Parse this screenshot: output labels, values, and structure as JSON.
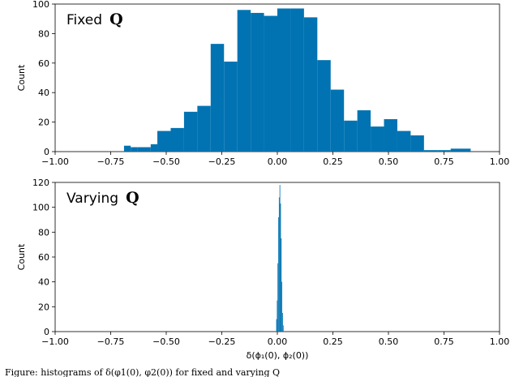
{
  "caption_fragment": "Figure: histograms of δ(φ1(0), φ2(0)) for fixed and varying Q",
  "chart_data": [
    {
      "type": "bar",
      "title_prefix": "Fixed",
      "title_symbol": "Q",
      "xlabel": "",
      "ylabel": "Count",
      "xlim": [
        -1.0,
        1.0
      ],
      "ylim": [
        0,
        100
      ],
      "xticks": [
        "−1.00",
        "−0.75",
        "−0.50",
        "−0.25",
        "0.00",
        "0.25",
        "0.50",
        "0.75",
        "1.00"
      ],
      "yticks": [
        "0",
        "20",
        "40",
        "60",
        "80",
        "100"
      ],
      "color": "#0173b2",
      "bins": [
        {
          "x0": -0.69,
          "x1": -0.66,
          "count": 4
        },
        {
          "x0": -0.66,
          "x1": -0.63,
          "count": 3
        },
        {
          "x0": -0.63,
          "x1": -0.57,
          "count": 3
        },
        {
          "x0": -0.57,
          "x1": -0.54,
          "count": 5
        },
        {
          "x0": -0.54,
          "x1": -0.48,
          "count": 14
        },
        {
          "x0": -0.48,
          "x1": -0.42,
          "count": 16
        },
        {
          "x0": -0.42,
          "x1": -0.36,
          "count": 27
        },
        {
          "x0": -0.36,
          "x1": -0.3,
          "count": 31
        },
        {
          "x0": -0.3,
          "x1": -0.24,
          "count": 73
        },
        {
          "x0": -0.24,
          "x1": -0.18,
          "count": 61
        },
        {
          "x0": -0.18,
          "x1": -0.12,
          "count": 96
        },
        {
          "x0": -0.12,
          "x1": -0.06,
          "count": 94
        },
        {
          "x0": -0.06,
          "x1": 0.0,
          "count": 92
        },
        {
          "x0": 0.0,
          "x1": 0.06,
          "count": 97
        },
        {
          "x0": 0.06,
          "x1": 0.12,
          "count": 97
        },
        {
          "x0": 0.12,
          "x1": 0.18,
          "count": 91
        },
        {
          "x0": 0.18,
          "x1": 0.24,
          "count": 62
        },
        {
          "x0": 0.24,
          "x1": 0.3,
          "count": 42
        },
        {
          "x0": 0.3,
          "x1": 0.36,
          "count": 21
        },
        {
          "x0": 0.36,
          "x1": 0.42,
          "count": 28
        },
        {
          "x0": 0.42,
          "x1": 0.48,
          "count": 17
        },
        {
          "x0": 0.48,
          "x1": 0.54,
          "count": 22
        },
        {
          "x0": 0.54,
          "x1": 0.6,
          "count": 14
        },
        {
          "x0": 0.6,
          "x1": 0.66,
          "count": 11
        },
        {
          "x0": 0.66,
          "x1": 0.72,
          "count": 1
        },
        {
          "x0": 0.72,
          "x1": 0.78,
          "count": 1
        },
        {
          "x0": 0.78,
          "x1": 0.87,
          "count": 2
        }
      ]
    },
    {
      "type": "bar",
      "title_prefix": "Varying",
      "title_symbol": "Q",
      "xlabel": "δ(ϕ₁(0), ϕ₂(0))",
      "ylabel": "Count",
      "xlim": [
        -1.0,
        1.0
      ],
      "ylim": [
        0,
        120
      ],
      "xticks": [
        "−1.00",
        "−0.75",
        "−0.50",
        "−0.25",
        "0.00",
        "0.25",
        "0.50",
        "0.75",
        "1.00"
      ],
      "yticks": [
        "0",
        "20",
        "40",
        "60",
        "80",
        "100",
        "120"
      ],
      "color": "#0173b2",
      "bins": [
        {
          "x0": -0.005,
          "x1": -0.002,
          "count": 10
        },
        {
          "x0": -0.002,
          "x1": 0.001,
          "count": 25
        },
        {
          "x0": 0.001,
          "x1": 0.004,
          "count": 55
        },
        {
          "x0": 0.004,
          "x1": 0.007,
          "count": 92
        },
        {
          "x0": 0.007,
          "x1": 0.01,
          "count": 108
        },
        {
          "x0": 0.01,
          "x1": 0.013,
          "count": 118
        },
        {
          "x0": 0.013,
          "x1": 0.016,
          "count": 103
        },
        {
          "x0": 0.016,
          "x1": 0.019,
          "count": 75
        },
        {
          "x0": 0.019,
          "x1": 0.022,
          "count": 40
        },
        {
          "x0": 0.022,
          "x1": 0.025,
          "count": 15
        },
        {
          "x0": 0.025,
          "x1": 0.028,
          "count": 5
        }
      ]
    }
  ]
}
